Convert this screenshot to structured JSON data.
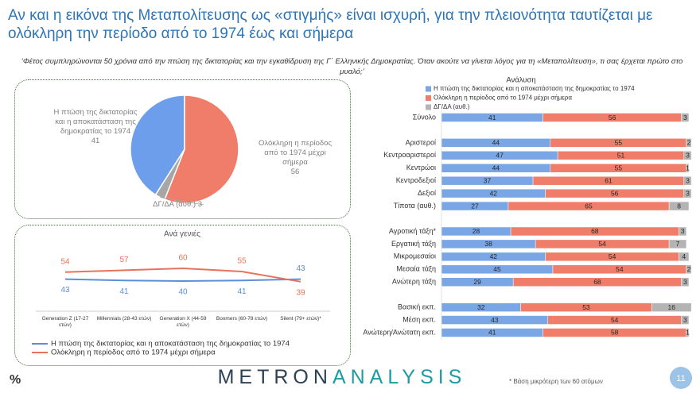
{
  "title": "Αν και η εικόνα της Μεταπολίτευσης ως «στιγμής» είναι ισχυρή, για την πλειονότητα ταυτίζεται με ολόκληρη την περίοδο από το 1974 έως και σήμερα",
  "subtitle": "‘Φέτος συμπληρώνονται 50 χρόνια από την πτώση της δικτατορίας και την εγκαθίδρυση της Γ΄ Ελληνικής Δημοκρατίας. Όταν ακούτε να γίνεται λόγος για τη «Μεταπολίτευση», τι σας έρχεται πρώτο στο μυαλό;’",
  "unit_label": "%",
  "logo": [
    "METRON",
    "ANALYSIS"
  ],
  "footnote": "* Βάση μικρότερη των 60 ατόμων",
  "page_number": 11,
  "chart_data": [
    {
      "type": "pie",
      "categories": [
        "Η πτώση της δικτατορίας και η αποκατάσταση της δημοκρατίας το 1974",
        "Ολόκληρη η περίοδος από το 1974 μέχρι σήμερα",
        "ΔΓ/ΔΑ (αυθ.)"
      ],
      "values": [
        41,
        56,
        3
      ],
      "colors": [
        "#6d9eeb",
        "#f07d69",
        "#a6a6a6"
      ]
    },
    {
      "type": "line",
      "title": "Ανά γενιές",
      "categories": [
        "Generation Z (17-27 ετών)",
        "Millennials (28-43 ετών)",
        "Generation X (44-59 ετών)",
        "Boomers (60-78 ετών)",
        "Silent (79+ ετών)*"
      ],
      "series": [
        {
          "name": "Η πτώση της δικτατορίας και η αποκατάσταση της δημοκρατίας το 1974",
          "color": "#5b8fd9",
          "values": [
            43,
            41,
            40,
            41,
            43
          ]
        },
        {
          "name": "Ολόκληρη η περίοδος από το 1974 μέχρι σήμερα",
          "color": "#e8735c",
          "values": [
            54,
            57,
            60,
            55,
            39
          ]
        }
      ],
      "ylim": [
        0,
        100
      ]
    },
    {
      "type": "bar",
      "title": "Ανάλυση",
      "orientation": "horizontal",
      "stacked": true,
      "categories": [
        "Σύνολο",
        null,
        "Αριστεροί",
        "Κεντροαριστεροί",
        "Κεντρώοι",
        "Κεντροδεξιοί",
        "Δεξιοί",
        "Τίποτα (αυθ.)",
        null,
        "Αγροτική τάξη*",
        "Εργατική τάξη",
        "Μικρομεσαίοι",
        "Μεσαία τάξη",
        "Ανώτερη τάξη",
        null,
        "Βασική εκπ.",
        "Μέση εκπ.",
        "Ανώτερη/Ανώτατη εκπ."
      ],
      "series": [
        {
          "name": "Η πτώση της δικτατορίας και η αποκατάσταση της δημοκρατίας το 1974",
          "color": "#7ba6e6",
          "values": [
            41,
            null,
            44,
            47,
            44,
            37,
            42,
            27,
            null,
            28,
            38,
            42,
            45,
            29,
            null,
            32,
            43,
            41
          ]
        },
        {
          "name": "Ολόκληρη η περίοδος από το 1974 μέχρι σήμερα",
          "color": "#f07d69",
          "values": [
            56,
            null,
            55,
            51,
            55,
            61,
            56,
            65,
            null,
            68,
            54,
            54,
            54,
            68,
            null,
            53,
            54,
            58
          ]
        },
        {
          "name": "ΔΓ/ΔΑ (αυθ.)",
          "color": "#b4b4b4",
          "values": [
            3,
            null,
            2,
            3,
            1,
            3,
            3,
            8,
            null,
            3,
            7,
            4,
            2,
            3,
            null,
            16,
            3,
            1
          ]
        }
      ],
      "xlim": [
        0,
        100
      ]
    }
  ]
}
